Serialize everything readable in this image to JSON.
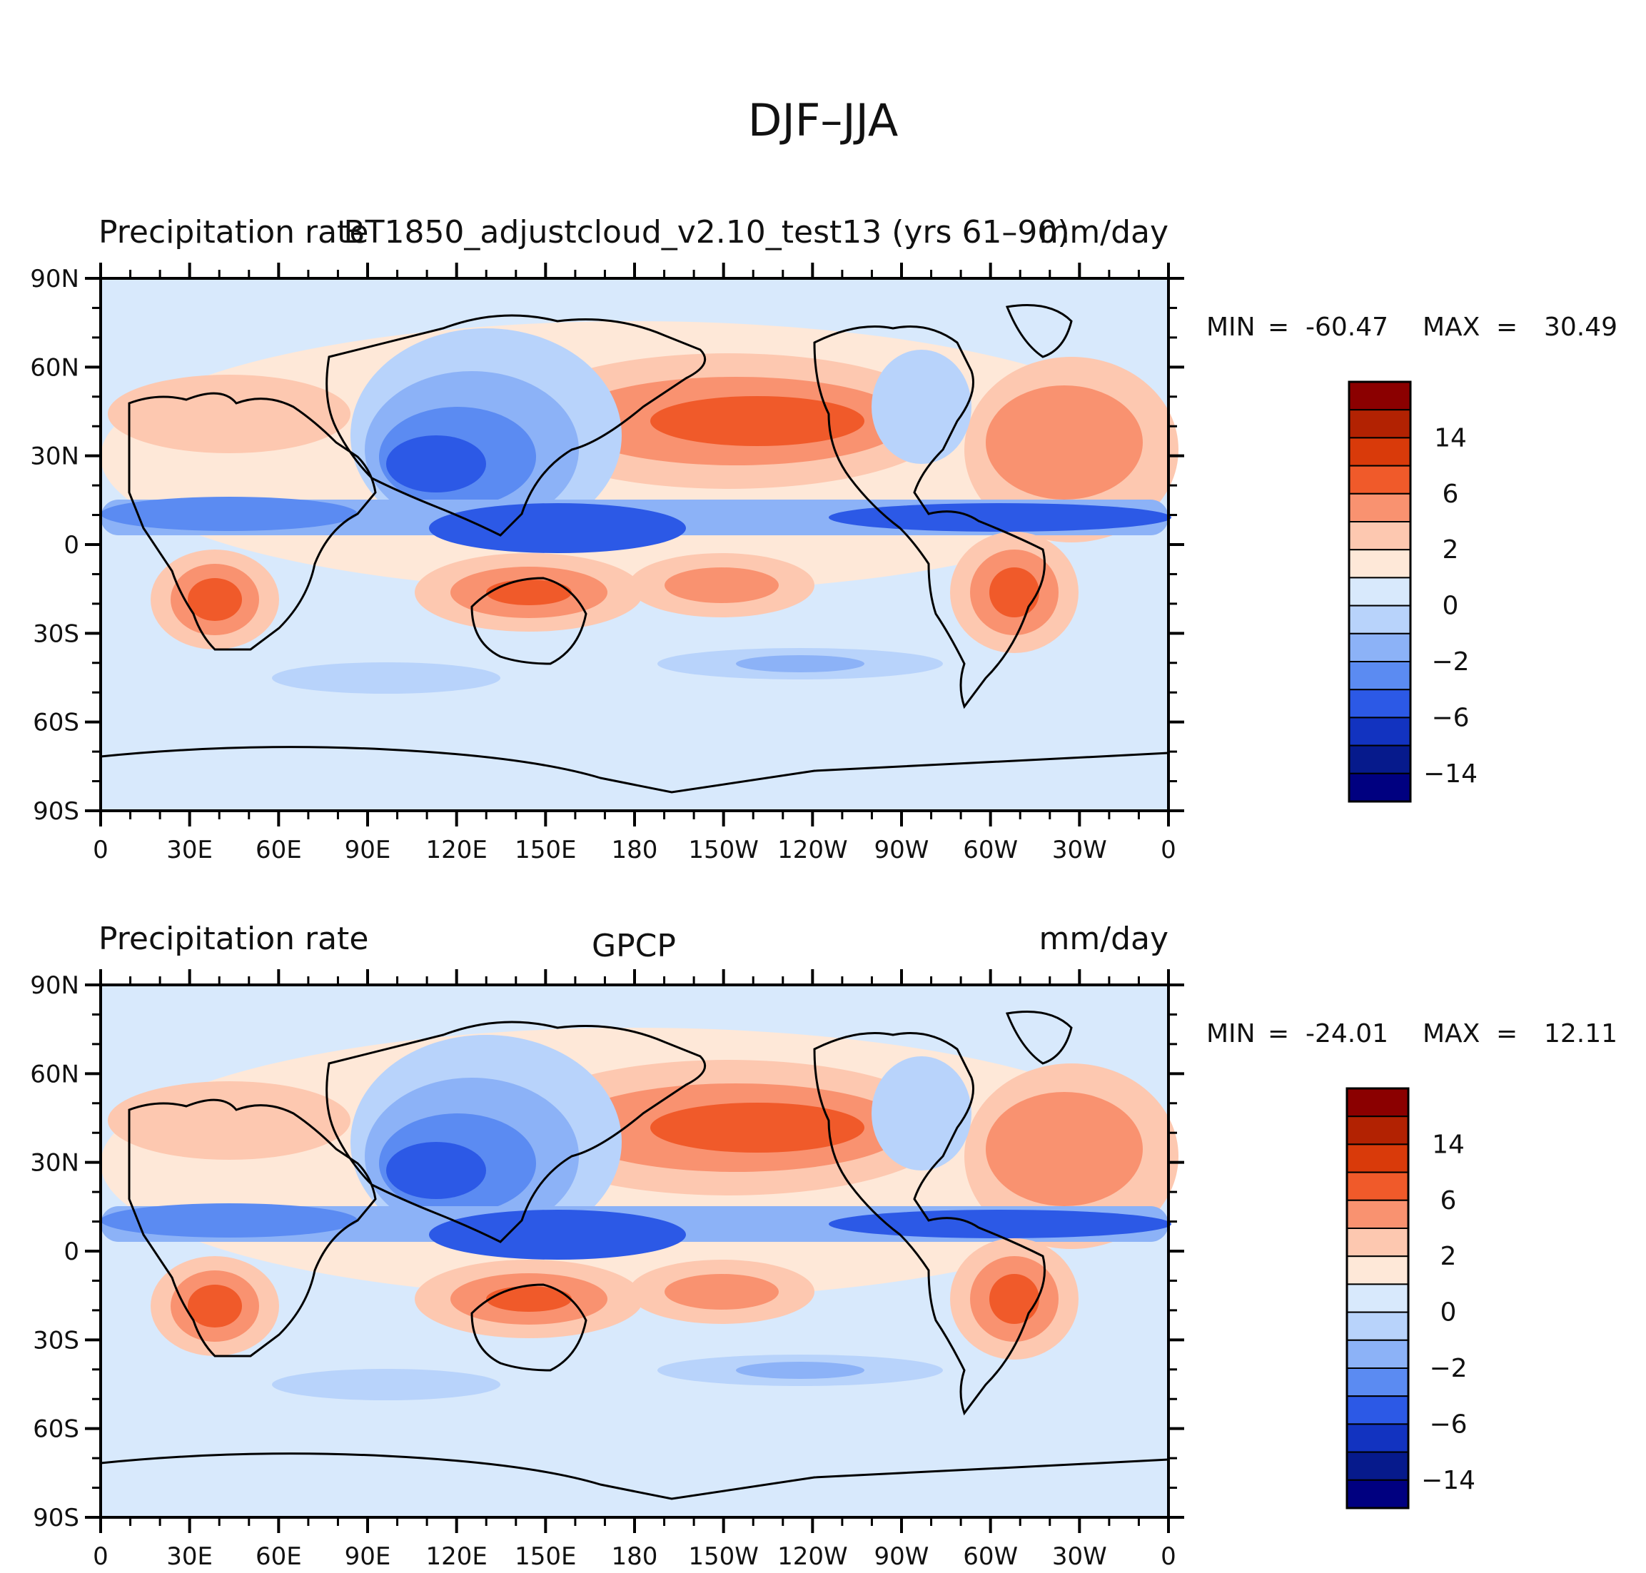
{
  "figure": {
    "title": "DJF–JJA"
  },
  "panels": [
    {
      "left_title": "Precipitation rate",
      "center_title": "BT1850_adjustcloud_v2.10_test13 (yrs 61–90)",
      "units": "mm/day",
      "min_label": "MIN",
      "min_value": "-60.47",
      "max_label": "MAX",
      "max_value": "30.49"
    },
    {
      "left_title": "Precipitation rate",
      "center_title": "GPCP",
      "units": "mm/day",
      "min_label": "MIN",
      "min_value": "-24.01",
      "max_label": "MAX",
      "max_value": "12.11"
    }
  ],
  "axes": {
    "lat_ticks": [
      "90N",
      "60N",
      "30N",
      "0",
      "30S",
      "60S",
      "90S"
    ],
    "lon_ticks": [
      "0",
      "30E",
      "60E",
      "90E",
      "120E",
      "150E",
      "180",
      "150W",
      "120W",
      "90W",
      "60W",
      "30W",
      "0"
    ]
  },
  "colorbar": {
    "labels": [
      "14",
      "6",
      "2",
      "0",
      "−2",
      "−6",
      "−14"
    ],
    "colors": [
      "#8b0000",
      "#b22202",
      "#d93a0a",
      "#f05a2a",
      "#f99270",
      "#fdc8b0",
      "#fee8d8",
      "#d8e9fc",
      "#b8d3fb",
      "#8cb2f7",
      "#5b8bf2",
      "#2c59e6",
      "#1233c0",
      "#061a8c",
      "#000080"
    ]
  },
  "chart_data": [
    {
      "type": "filled-contour-map",
      "title": "BT1850_adjustcloud_v2.10_test13 (yrs 61–90)",
      "variable": "Precipitation rate",
      "units": "mm/day",
      "season_difference": "DJF–JJA",
      "min": -60.47,
      "max": 30.49,
      "lon_range": [
        0,
        360
      ],
      "lat_range": [
        -90,
        90
      ],
      "contour_levels": [
        -14,
        -10,
        -6,
        -4,
        -2,
        -1,
        0,
        1,
        2,
        4,
        6,
        10,
        14,
        20
      ]
    },
    {
      "type": "filled-contour-map",
      "title": "GPCP",
      "variable": "Precipitation rate",
      "units": "mm/day",
      "season_difference": "DJF–JJA",
      "min": -24.01,
      "max": 12.11,
      "lon_range": [
        0,
        360
      ],
      "lat_range": [
        -90,
        90
      ],
      "contour_levels": [
        -14,
        -10,
        -6,
        -4,
        -2,
        -1,
        0,
        1,
        2,
        4,
        6,
        10,
        14,
        20
      ]
    }
  ]
}
